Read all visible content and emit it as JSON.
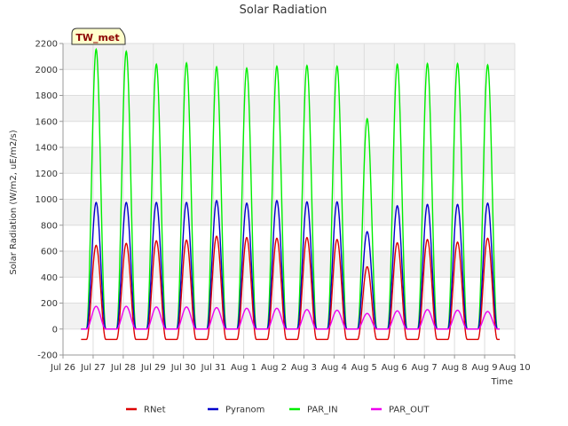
{
  "chart_data": {
    "type": "line",
    "title": "Solar Radiation",
    "xlabel": "Time",
    "ylabel": "Solar Radiation (W/m2, uE/m2/s)",
    "station_label": "TW_met",
    "ylim": [
      -200,
      2200
    ],
    "yticks": [
      -200,
      0,
      200,
      400,
      600,
      800,
      1000,
      1200,
      1400,
      1600,
      1800,
      2000,
      2200
    ],
    "xlim": [
      0,
      15
    ],
    "xtick_labels": [
      "Jul 26",
      "Jul 27",
      "Jul 28",
      "Jul 29",
      "Jul 30",
      "Jul 31",
      "Aug 1",
      "Aug 2",
      "Aug 3",
      "Aug 4",
      "Aug 5",
      "Aug 6",
      "Aug 7",
      "Aug 8",
      "Aug 9",
      "Aug 10"
    ],
    "grid": true,
    "legend_position": "bottom",
    "series": [
      {
        "name": "RNet",
        "color": "#dd0000",
        "daily_peak": [
          645,
          660,
          680,
          685,
          715,
          705,
          700,
          705,
          690,
          480,
          665,
          690,
          670,
          700
        ],
        "night_value": -80
      },
      {
        "name": "Pyranom",
        "color": "#0000cc",
        "daily_peak": [
          975,
          975,
          975,
          975,
          990,
          970,
          990,
          980,
          980,
          750,
          950,
          960,
          960,
          970
        ],
        "night_value": 0
      },
      {
        "name": "PAR_IN",
        "color": "#00ee00",
        "daily_peak": [
          2155,
          2140,
          2040,
          2050,
          2020,
          2010,
          2025,
          2030,
          2025,
          1620,
          2040,
          2045,
          2045,
          2035
        ],
        "night_value": 0
      },
      {
        "name": "PAR_OUT",
        "color": "#ee00ee",
        "daily_peak": [
          175,
          175,
          170,
          170,
          165,
          160,
          160,
          150,
          145,
          120,
          140,
          150,
          145,
          135
        ],
        "night_value": 0
      }
    ],
    "day_centers": [
      1.1,
      2.1,
      3.1,
      4.1,
      5.1,
      6.1,
      7.1,
      8.1,
      9.1,
      10.1,
      11.1,
      12.1,
      13.1,
      14.1
    ]
  }
}
